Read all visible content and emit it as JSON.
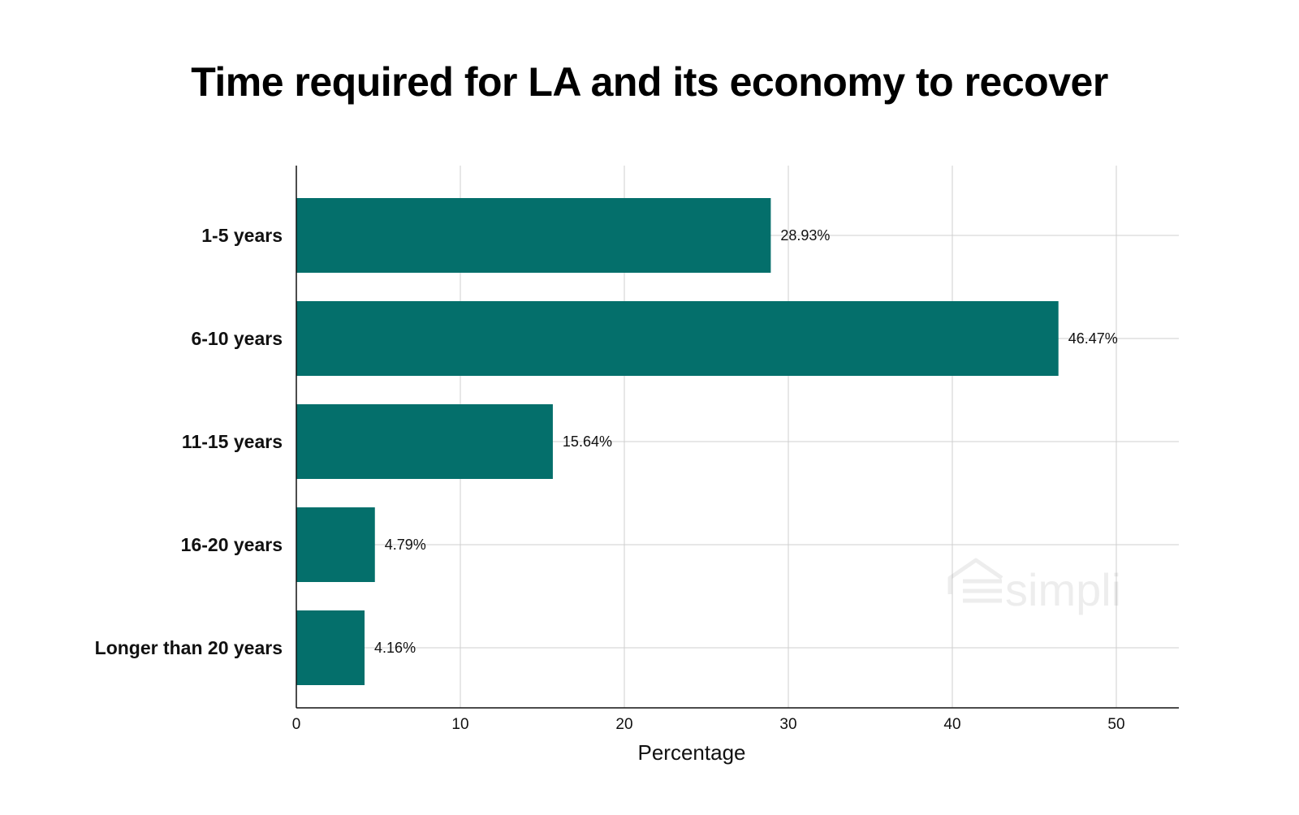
{
  "chart_data": {
    "type": "bar",
    "orientation": "horizontal",
    "title": "Time required for LA and its economy to recover",
    "xlabel": "Percentage",
    "ylabel": "",
    "categories": [
      "1-5 years",
      "6-10 years",
      "11-15 years",
      "16-20 years",
      "Longer than 20 years"
    ],
    "values": [
      28.93,
      46.47,
      15.64,
      4.79,
      4.16
    ],
    "value_labels": [
      "28.93%",
      "46.47%",
      "15.64%",
      "4.79%",
      "4.16%"
    ],
    "xlim": [
      0,
      58
    ],
    "xticks": [
      0,
      10,
      20,
      30,
      40,
      50
    ],
    "grid": true,
    "bar_color": "#046f6b"
  },
  "watermark": {
    "text": "simpli",
    "icon": "house-lines-icon"
  }
}
